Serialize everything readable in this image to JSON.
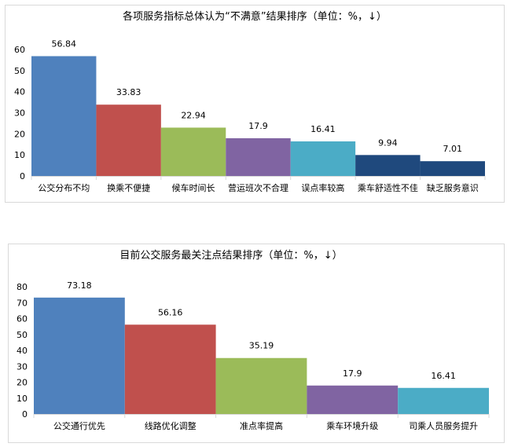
{
  "chart_data": [
    {
      "type": "bar",
      "title": "各项服务指标总体认为“不满意”结果排序（单位：%，↓）",
      "categories": [
        "公交分布不均",
        "换乘不便捷",
        "候车时间长",
        "营运班次不合理",
        "误点率较高",
        "乘车舒适性不佳",
        "缺乏服务意识"
      ],
      "values": [
        56.84,
        33.83,
        22.94,
        17.9,
        16.41,
        9.94,
        7.01
      ],
      "colors": [
        "#4f81bd",
        "#c0504d",
        "#9bbb59",
        "#8064a2",
        "#4bacc6",
        "#1f497d",
        "#1f497d"
      ],
      "ylim": [
        0,
        60
      ],
      "yticks": [
        0,
        10,
        20,
        30,
        40,
        50,
        60
      ],
      "grid": false,
      "data_labels": true
    },
    {
      "type": "bar",
      "title": "目前公交服务最关注点结果排序（单位：%，↓）",
      "categories": [
        "公交通行优先",
        "线路优化调整",
        "准点率提高",
        "乘车环境升级",
        "司乘人员服务提升"
      ],
      "values": [
        73.18,
        56.16,
        35.19,
        17.9,
        16.41
      ],
      "colors": [
        "#4f81bd",
        "#c0504d",
        "#9bbb59",
        "#8064a2",
        "#4bacc6"
      ],
      "ylim": [
        0,
        80
      ],
      "yticks": [
        0,
        10,
        20,
        30,
        40,
        50,
        60,
        70,
        80
      ],
      "grid": false,
      "data_labels": true
    }
  ]
}
